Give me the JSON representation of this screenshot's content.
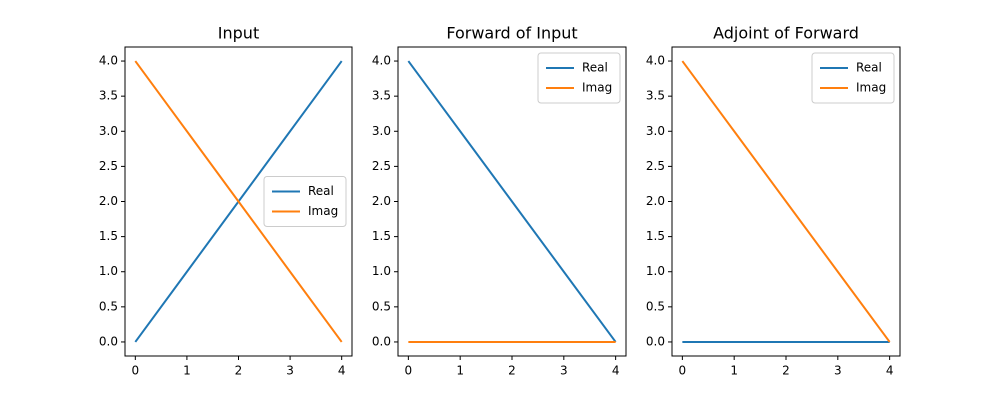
{
  "chart_data": [
    {
      "type": "line",
      "title": "Input",
      "x": [
        0,
        1,
        2,
        3,
        4
      ],
      "series": [
        {
          "name": "Real",
          "color": "#1f77b4",
          "values": [
            0,
            1,
            2,
            3,
            4
          ]
        },
        {
          "name": "Imag",
          "color": "#ff7f0e",
          "values": [
            4,
            3,
            2,
            1,
            0
          ]
        }
      ],
      "xlim": [
        -0.2,
        4.2
      ],
      "ylim": [
        -0.2,
        4.2
      ],
      "xticks": [
        0,
        1,
        2,
        3,
        4
      ],
      "yticks": [
        {
          "value": 0,
          "label": "0.0"
        },
        {
          "value": 0.5,
          "label": "0.5"
        },
        {
          "value": 1,
          "label": "1.0"
        },
        {
          "value": 1.5,
          "label": "1.5"
        },
        {
          "value": 2,
          "label": "2.0"
        },
        {
          "value": 2.5,
          "label": "2.5"
        },
        {
          "value": 3,
          "label": "3.0"
        },
        {
          "value": 3.5,
          "label": "3.5"
        },
        {
          "value": 4,
          "label": "4.0"
        }
      ],
      "grid": false,
      "legend": "center right"
    },
    {
      "type": "line",
      "title": "Forward of Input",
      "x": [
        0,
        1,
        2,
        3,
        4
      ],
      "series": [
        {
          "name": "Real",
          "color": "#1f77b4",
          "values": [
            4,
            3,
            2,
            1,
            0
          ]
        },
        {
          "name": "Imag",
          "color": "#ff7f0e",
          "values": [
            0,
            0,
            0,
            0,
            0
          ]
        }
      ],
      "xlim": [
        -0.2,
        4.2
      ],
      "ylim": [
        -0.2,
        4.2
      ],
      "xticks": [
        0,
        1,
        2,
        3,
        4
      ],
      "yticks": [
        {
          "value": 0,
          "label": "0.0"
        },
        {
          "value": 0.5,
          "label": "0.5"
        },
        {
          "value": 1,
          "label": "1.0"
        },
        {
          "value": 1.5,
          "label": "1.5"
        },
        {
          "value": 2,
          "label": "2.0"
        },
        {
          "value": 2.5,
          "label": "2.5"
        },
        {
          "value": 3,
          "label": "3.0"
        },
        {
          "value": 3.5,
          "label": "3.5"
        },
        {
          "value": 4,
          "label": "4.0"
        }
      ],
      "grid": false,
      "legend": "upper right"
    },
    {
      "type": "line",
      "title": "Adjoint of Forward",
      "x": [
        0,
        1,
        2,
        3,
        4
      ],
      "series": [
        {
          "name": "Real",
          "color": "#1f77b4",
          "values": [
            0,
            0,
            0,
            0,
            0
          ]
        },
        {
          "name": "Imag",
          "color": "#ff7f0e",
          "values": [
            4,
            3,
            2,
            1,
            0
          ]
        }
      ],
      "xlim": [
        -0.2,
        4.2
      ],
      "ylim": [
        -0.2,
        4.2
      ],
      "xticks": [
        0,
        1,
        2,
        3,
        4
      ],
      "yticks": [
        {
          "value": 0,
          "label": "0.0"
        },
        {
          "value": 0.5,
          "label": "0.5"
        },
        {
          "value": 1,
          "label": "1.0"
        },
        {
          "value": 1.5,
          "label": "1.5"
        },
        {
          "value": 2,
          "label": "2.0"
        },
        {
          "value": 2.5,
          "label": "2.5"
        },
        {
          "value": 3,
          "label": "3.0"
        },
        {
          "value": 3.5,
          "label": "3.5"
        },
        {
          "value": 4,
          "label": "4.0"
        }
      ],
      "grid": false,
      "legend": "upper right"
    }
  ]
}
